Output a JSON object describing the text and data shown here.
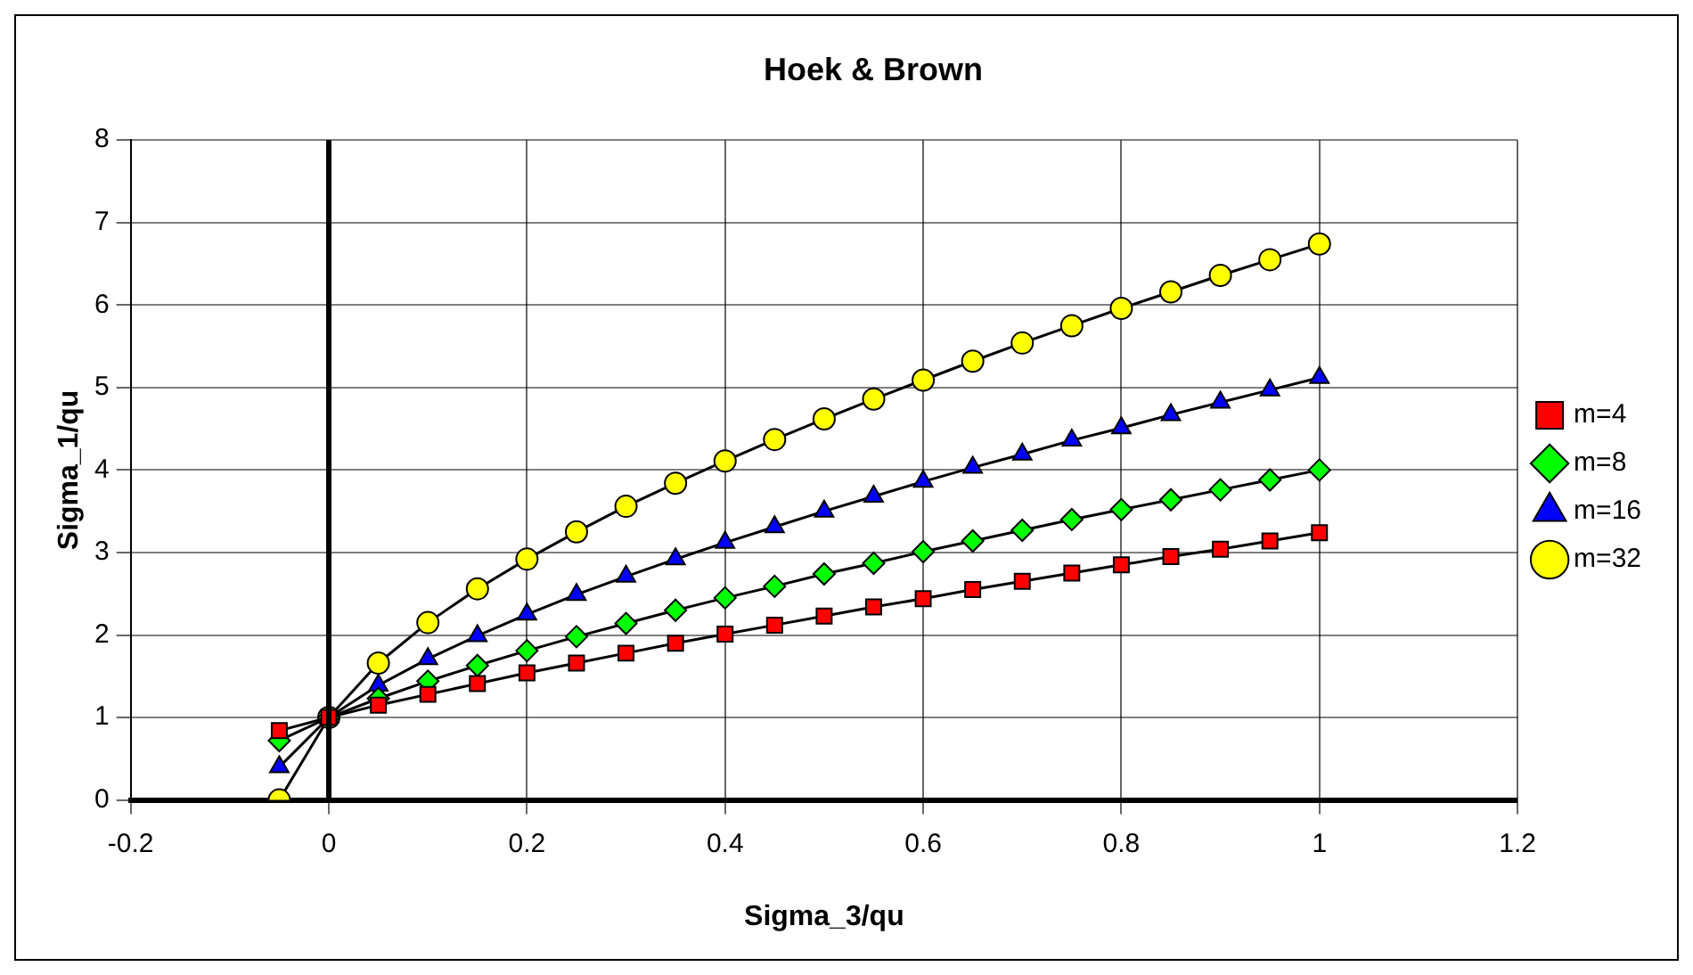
{
  "chart_data": {
    "type": "line",
    "title": "Hoek & Brown",
    "xlabel": "Sigma_3/qu",
    "ylabel": "Sigma_1/qu",
    "x": [
      -0.05,
      0,
      0.05,
      0.1,
      0.15,
      0.2,
      0.25,
      0.3,
      0.35,
      0.4,
      0.45,
      0.5,
      0.55,
      0.6,
      0.65,
      0.7,
      0.75,
      0.8,
      0.85,
      0.9,
      0.95,
      1
    ],
    "series": [
      {
        "name": "m=4",
        "color": "#ff0000",
        "marker": "square",
        "values": [
          0.84,
          1,
          1.15,
          1.28,
          1.41,
          1.54,
          1.66,
          1.78,
          1.9,
          2.01,
          2.12,
          2.23,
          2.34,
          2.44,
          2.55,
          2.65,
          2.75,
          2.85,
          2.95,
          3.04,
          3.14,
          3.24
        ]
      },
      {
        "name": "m=8",
        "color": "#00ff00",
        "marker": "diamond",
        "values": [
          0.72,
          1,
          1.23,
          1.44,
          1.63,
          1.81,
          1.98,
          2.14,
          2.3,
          2.45,
          2.59,
          2.74,
          2.87,
          3.01,
          3.14,
          3.27,
          3.4,
          3.52,
          3.64,
          3.76,
          3.88,
          4
        ]
      },
      {
        "name": "m=16",
        "color": "#0000ff",
        "marker": "triangle",
        "values": [
          0.4,
          1,
          1.39,
          1.71,
          1.99,
          2.25,
          2.49,
          2.71,
          2.92,
          3.12,
          3.31,
          3.5,
          3.68,
          3.86,
          4.03,
          4.19,
          4.36,
          4.51,
          4.67,
          4.82,
          4.97,
          5.12
        ]
      },
      {
        "name": "m=32",
        "color": "#ffff00",
        "marker": "circle",
        "values": [
          0,
          1,
          1.66,
          2.15,
          2.56,
          2.92,
          3.25,
          3.56,
          3.84,
          4.11,
          4.37,
          4.62,
          4.86,
          5.09,
          5.32,
          5.54,
          5.75,
          5.96,
          6.16,
          6.36,
          6.55,
          6.74
        ]
      }
    ],
    "xlim": [
      -0.2,
      1.2
    ],
    "xticks": [
      -0.2,
      0,
      0.2,
      0.4,
      0.6,
      0.8,
      1,
      1.2
    ],
    "ylim": [
      0,
      8
    ],
    "yticks": [
      0,
      1,
      2,
      3,
      4,
      5,
      6,
      7,
      8
    ],
    "grid": true,
    "legend": "right",
    "line_style": "solid"
  }
}
